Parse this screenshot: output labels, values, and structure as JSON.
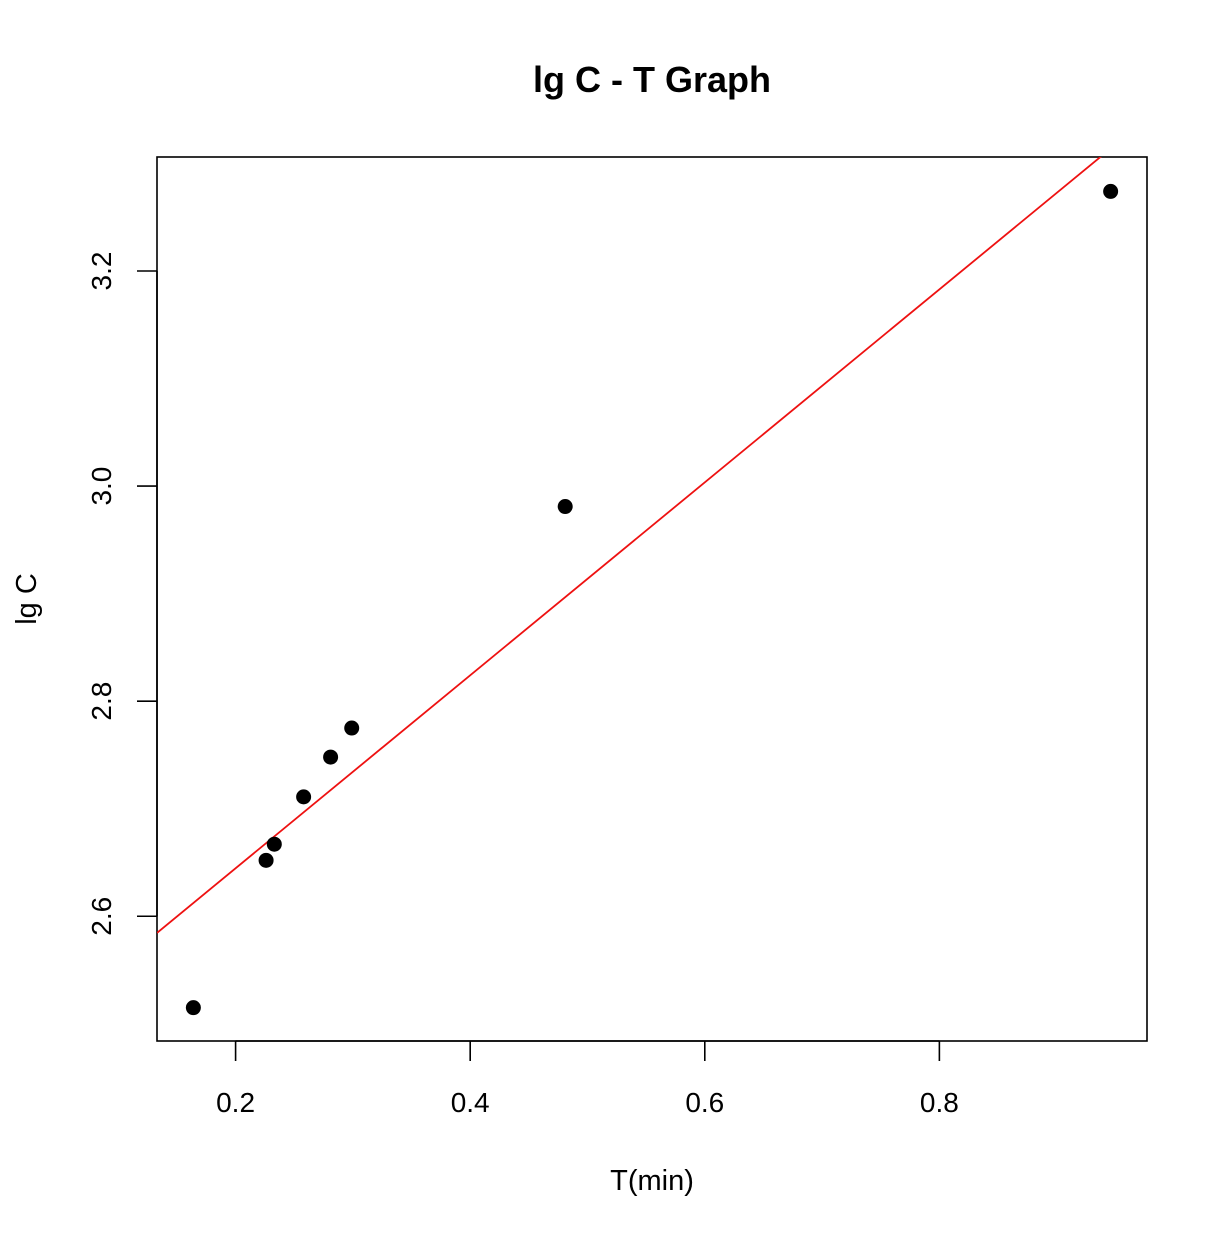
{
  "chart_data": {
    "type": "scatter",
    "title": "lg C - T Graph",
    "xlabel": "T(min)",
    "ylabel": "lg C",
    "xlim": [
      0.133,
      0.977
    ],
    "ylim": [
      2.484,
      3.306
    ],
    "x_ticks": [
      {
        "value": 0.2,
        "label": "0.2"
      },
      {
        "value": 0.4,
        "label": "0.4"
      },
      {
        "value": 0.6,
        "label": "0.6"
      },
      {
        "value": 0.8,
        "label": "0.8"
      }
    ],
    "y_ticks": [
      {
        "value": 2.6,
        "label": "2.6"
      },
      {
        "value": 2.8,
        "label": "2.8"
      },
      {
        "value": 3.0,
        "label": "3.0"
      },
      {
        "value": 3.2,
        "label": "3.2"
      }
    ],
    "points": [
      {
        "x": 0.164,
        "y": 2.515
      },
      {
        "x": 0.226,
        "y": 2.652
      },
      {
        "x": 0.233,
        "y": 2.667
      },
      {
        "x": 0.258,
        "y": 2.711
      },
      {
        "x": 0.281,
        "y": 2.748
      },
      {
        "x": 0.299,
        "y": 2.775
      },
      {
        "x": 0.481,
        "y": 2.981
      },
      {
        "x": 0.946,
        "y": 3.274
      }
    ],
    "fit_line": {
      "intercept": 2.4652,
      "slope": 0.8971,
      "color": "#ee1111"
    },
    "point_color": "#000000",
    "grid": false,
    "legend": "none"
  }
}
